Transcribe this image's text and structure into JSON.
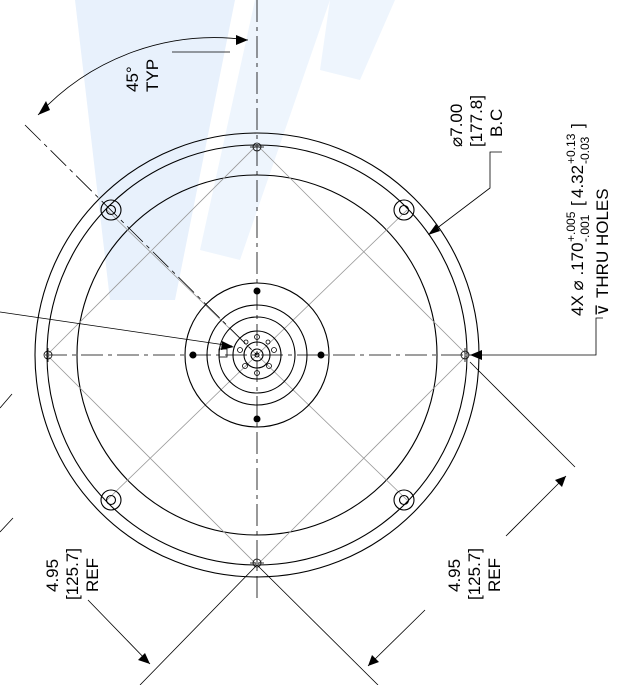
{
  "drawing": {
    "angle_dim": {
      "value": "45°",
      "note": "TYP"
    },
    "bolt_circle": {
      "value": "⌀7.00",
      "metric": "[177.8]",
      "note": "B.C"
    },
    "holes_callout": {
      "qty": "4X ⌀ .170",
      "tol_plus": "+.005",
      "tol_minus": "-.001",
      "metric_value": "4.32",
      "metric_plus": "+0.13",
      "metric_minus": "-0.03",
      "note": "THRU HOLES",
      "depth_symbol": "⊽"
    },
    "ref_dim_left": {
      "value": "4.95",
      "metric": "[125.7]",
      "note": "REF"
    },
    "ref_dim_right": {
      "value": "4.95",
      "metric": "[125.7]",
      "note": "REF"
    },
    "colors": {
      "line": "#000000",
      "hidden": "#9a9a9a",
      "watermark": "#e3eefb"
    }
  }
}
